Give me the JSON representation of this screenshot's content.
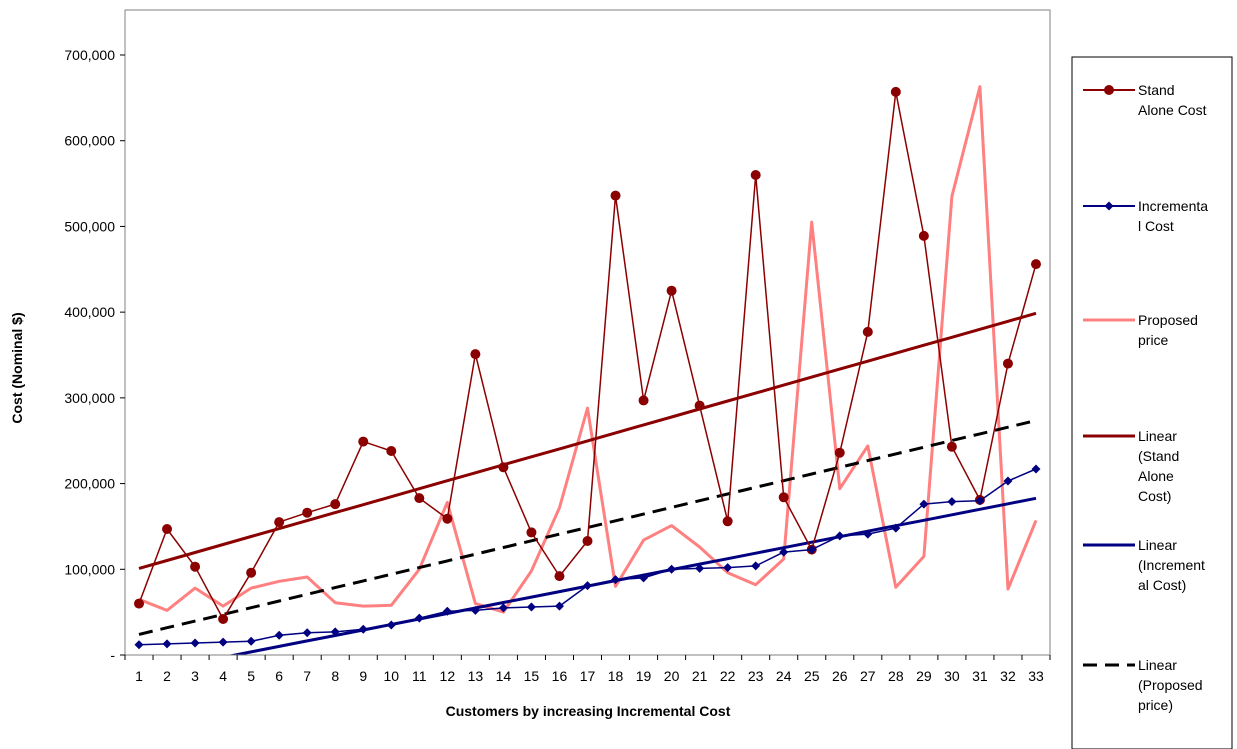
{
  "chart_data": {
    "type": "line",
    "title": "",
    "xlabel": "Customers by increasing Incremental Cost",
    "ylabel": "Cost (Nominal $)",
    "ylim": [
      0,
      700000
    ],
    "y_ticks": [
      0,
      100000,
      200000,
      300000,
      400000,
      500000,
      600000,
      700000
    ],
    "y_tick_labels": [
      "-",
      "100,000",
      "200,000",
      "300,000",
      "400,000",
      "500,000",
      "600,000",
      "700,000"
    ],
    "categories": [
      "1",
      "2",
      "3",
      "4",
      "5",
      "6",
      "7",
      "8",
      "9",
      "10",
      "11",
      "12",
      "13",
      "14",
      "15",
      "16",
      "17",
      "18",
      "19",
      "20",
      "21",
      "22",
      "23",
      "24",
      "25",
      "26",
      "27",
      "28",
      "29",
      "30",
      "31",
      "32",
      "33"
    ],
    "legend_position": "right",
    "grid": false,
    "series": [
      {
        "name": "Stand Alone Cost",
        "legend_lines": [
          "Stand",
          "Alone Cost"
        ],
        "color": "#8b0000",
        "marker": "circle",
        "values": [
          60000,
          147000,
          103000,
          42000,
          96000,
          155000,
          166000,
          176000,
          249000,
          238000,
          183000,
          159000,
          351000,
          219000,
          143000,
          92000,
          133000,
          536000,
          297000,
          425000,
          291000,
          156000,
          560000,
          184000,
          123000,
          236000,
          377000,
          657000,
          489000,
          243000,
          181000,
          340000,
          456000
        ]
      },
      {
        "name": "Incremental Cost",
        "legend_lines": [
          "Incrementa",
          "l Cost"
        ],
        "color": "#000080",
        "marker": "diamond",
        "values": [
          12000,
          13000,
          14000,
          15000,
          16000,
          23000,
          26000,
          27000,
          30000,
          35000,
          43000,
          51000,
          52000,
          55000,
          56000,
          57000,
          81000,
          88000,
          90000,
          100000,
          101000,
          102000,
          104000,
          120000,
          123000,
          139000,
          141000,
          148000,
          176000,
          179000,
          180000,
          203000,
          217000
        ]
      },
      {
        "name": "Proposed price",
        "legend_lines": [
          "Proposed",
          "price"
        ],
        "color": "#ff8080",
        "marker": "none",
        "values": [
          65000,
          52000,
          78000,
          57000,
          78000,
          86000,
          91000,
          61000,
          57000,
          58000,
          100000,
          178000,
          60000,
          50000,
          98000,
          172000,
          288000,
          80000,
          134000,
          151000,
          126000,
          96000,
          82000,
          112000,
          505000,
          194000,
          244000,
          79000,
          115000,
          535000,
          663000,
          77000,
          157000
        ]
      },
      {
        "name": "Linear (Stand Alone Cost)",
        "legend_lines": [
          "Linear",
          "(Stand",
          "Alone",
          "Cost)"
        ],
        "color": "#8b0000",
        "style": "trend-solid",
        "values": [
          101000,
          110300,
          119600,
          128900,
          138200,
          147500,
          156800,
          166100,
          175400,
          184700,
          194000,
          203300,
          212600,
          221900,
          231200,
          240500,
          249800,
          259100,
          268400,
          277700,
          287000,
          296300,
          305600,
          314900,
          324200,
          333500,
          342800,
          352100,
          361400,
          370700,
          380000,
          389300,
          398600
        ]
      },
      {
        "name": "Linear (Incremental Cost)",
        "legend_lines": [
          "Linear",
          "(Increment",
          "al Cost)"
        ],
        "color": "#000080",
        "style": "trend-solid",
        "values": [
          -22000,
          -15600,
          -9200,
          -2800,
          3600,
          10000,
          16400,
          22800,
          29200,
          35600,
          42000,
          48400,
          54800,
          61200,
          67600,
          74000,
          80400,
          86800,
          93200,
          99600,
          106000,
          112400,
          118800,
          125200,
          131600,
          138000,
          144400,
          150800,
          157200,
          163600,
          170000,
          176400,
          182800
        ]
      },
      {
        "name": "Linear (Proposed price)",
        "legend_lines": [
          "Linear",
          "(Proposed",
          "price)"
        ],
        "color": "#000000",
        "style": "trend-dashed",
        "values": [
          24000,
          31800,
          39600,
          47400,
          55200,
          63000,
          70800,
          78600,
          86400,
          94200,
          102000,
          109800,
          117600,
          125400,
          133200,
          141000,
          148800,
          156600,
          164400,
          172200,
          180000,
          187800,
          195600,
          203400,
          211200,
          219000,
          226800,
          234600,
          242400,
          250200,
          258000,
          265800,
          273600
        ]
      }
    ]
  }
}
